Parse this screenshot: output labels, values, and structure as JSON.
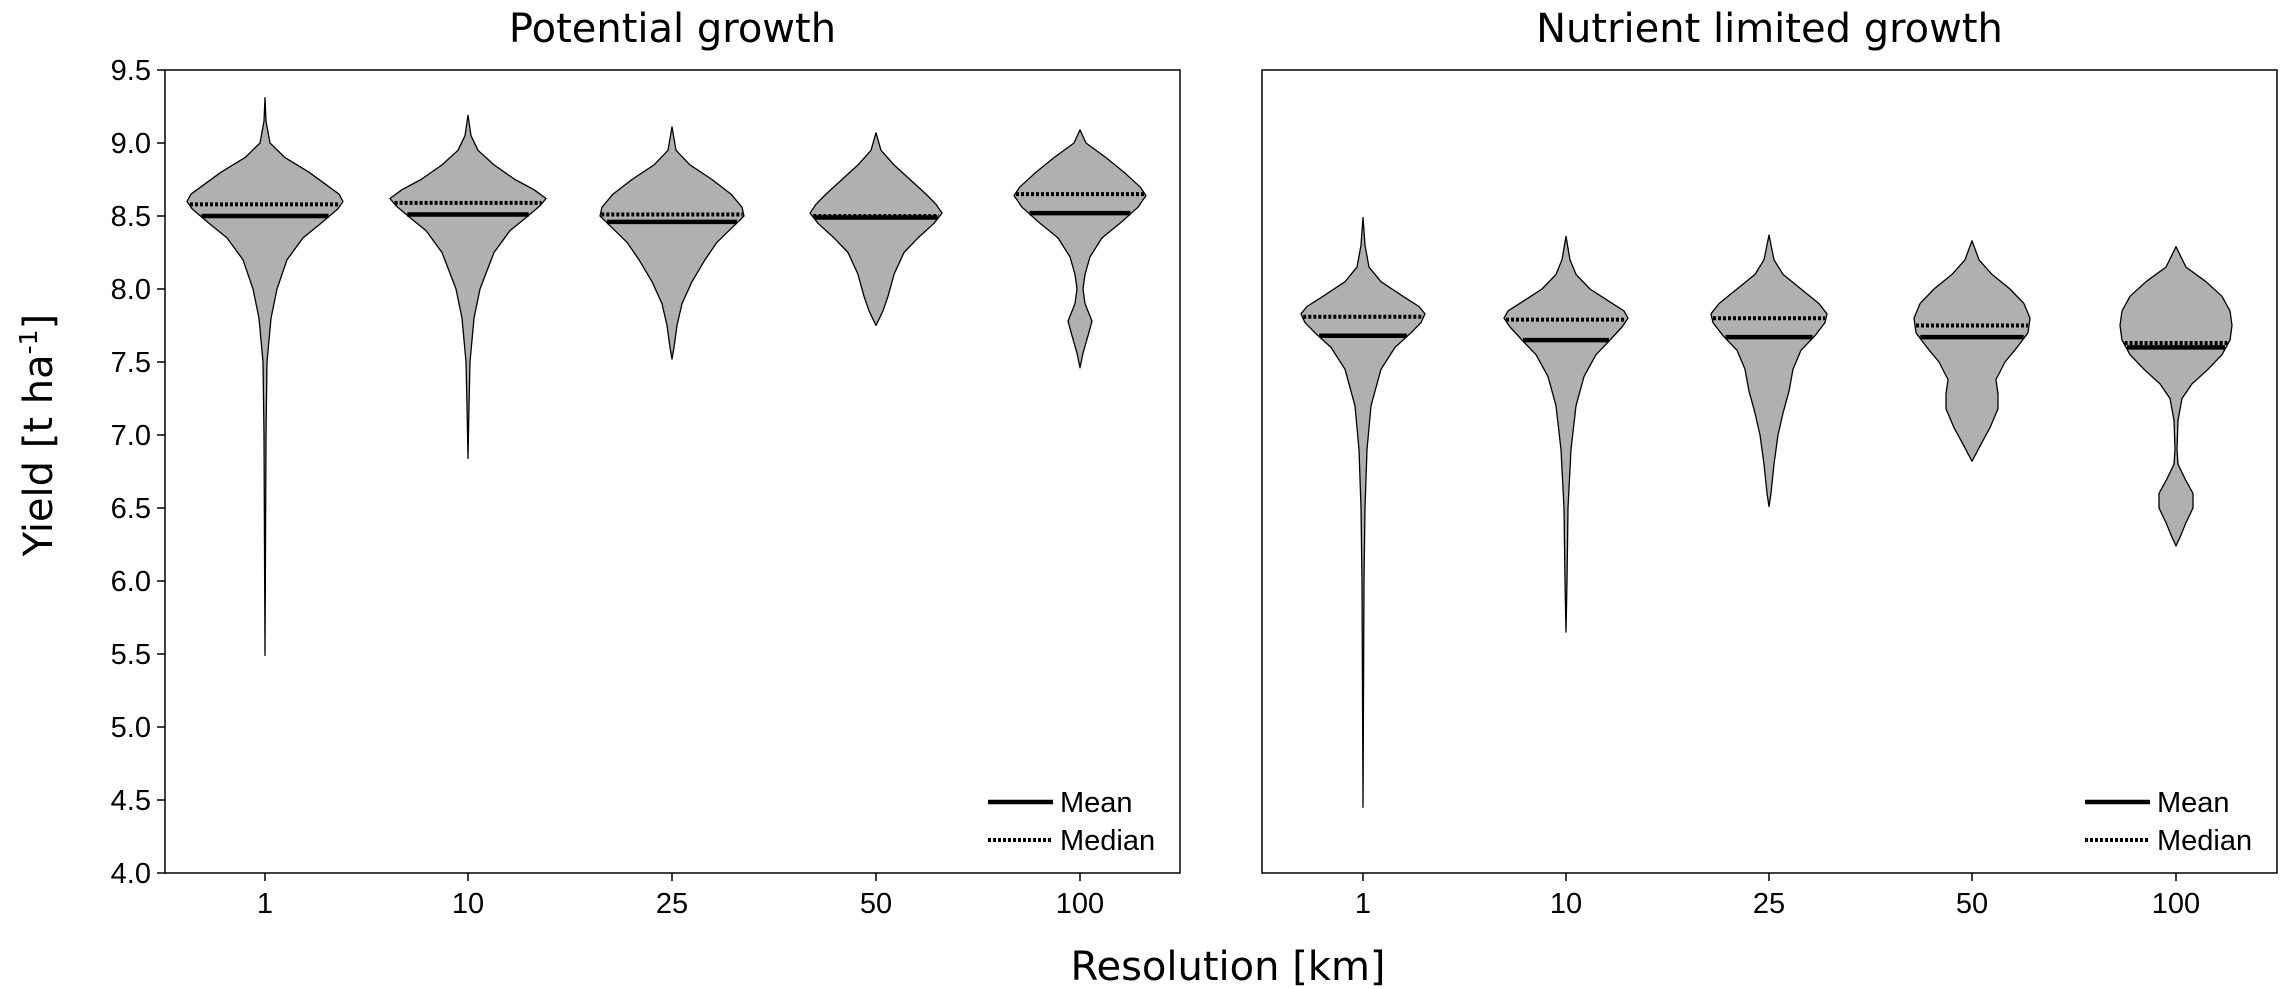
{
  "chart_data": {
    "type": "violin",
    "xlabel": "Resolution [km]",
    "ylabel": "Yield [t ha",
    "ylabel_sup": "-1",
    "ylabel_end": "]",
    "ylim": [
      4.0,
      9.5
    ],
    "yticks": [
      "4.0",
      "4.5",
      "5.0",
      "5.5",
      "6.0",
      "6.5",
      "7.0",
      "7.5",
      "8.0",
      "8.5",
      "9.0",
      "9.5"
    ],
    "categories": [
      "1",
      "10",
      "25",
      "50",
      "100"
    ],
    "legend": {
      "position": "bottom-right",
      "mean_label": "Mean",
      "median_label": "Median"
    },
    "colors": {
      "fill": "#b0b0b0",
      "stroke": "#000000"
    },
    "panels": [
      {
        "title": "Potential growth",
        "violins": [
          {
            "category": "1",
            "mean": 8.5,
            "median": 8.58,
            "max": 9.31,
            "min": 5.49,
            "profile": [
              [
                9.31,
                0
              ],
              [
                9.15,
                1
              ],
              [
                9.0,
                5
              ],
              [
                8.9,
                20
              ],
              [
                8.8,
                44
              ],
              [
                8.7,
                64
              ],
              [
                8.65,
                74
              ],
              [
                8.6,
                78
              ],
              [
                8.55,
                73
              ],
              [
                8.45,
                56
              ],
              [
                8.35,
                38
              ],
              [
                8.2,
                22
              ],
              [
                8.0,
                12
              ],
              [
                7.8,
                6
              ],
              [
                7.5,
                2
              ],
              [
                7.0,
                1
              ],
              [
                5.49,
                0
              ]
            ]
          },
          {
            "category": "10",
            "mean": 8.51,
            "median": 8.59,
            "max": 9.19,
            "min": 6.84,
            "profile": [
              [
                9.19,
                0
              ],
              [
                9.05,
                3
              ],
              [
                8.95,
                10
              ],
              [
                8.85,
                26
              ],
              [
                8.75,
                47
              ],
              [
                8.68,
                66
              ],
              [
                8.62,
                78
              ],
              [
                8.57,
                72
              ],
              [
                8.5,
                60
              ],
              [
                8.4,
                42
              ],
              [
                8.25,
                26
              ],
              [
                8.0,
                12
              ],
              [
                7.8,
                6
              ],
              [
                7.5,
                2
              ],
              [
                7.2,
                1
              ],
              [
                6.84,
                0
              ]
            ]
          },
          {
            "category": "25",
            "mean": 8.46,
            "median": 8.51,
            "max": 9.11,
            "min": 7.52,
            "profile": [
              [
                9.11,
                0
              ],
              [
                8.95,
                4
              ],
              [
                8.85,
                18
              ],
              [
                8.75,
                40
              ],
              [
                8.65,
                59
              ],
              [
                8.56,
                70
              ],
              [
                8.5,
                72
              ],
              [
                8.42,
                60
              ],
              [
                8.32,
                45
              ],
              [
                8.2,
                33
              ],
              [
                8.05,
                20
              ],
              [
                7.9,
                10
              ],
              [
                7.75,
                5
              ],
              [
                7.6,
                2
              ],
              [
                7.52,
                0
              ]
            ]
          },
          {
            "category": "50",
            "mean": 8.49,
            "median": 8.5,
            "max": 9.07,
            "min": 7.75,
            "profile": [
              [
                9.07,
                0
              ],
              [
                8.95,
                5
              ],
              [
                8.85,
                18
              ],
              [
                8.75,
                34
              ],
              [
                8.65,
                50
              ],
              [
                8.58,
                60
              ],
              [
                8.52,
                66
              ],
              [
                8.45,
                58
              ],
              [
                8.35,
                42
              ],
              [
                8.25,
                28
              ],
              [
                8.1,
                18
              ],
              [
                7.95,
                12
              ],
              [
                7.85,
                7
              ],
              [
                7.75,
                0
              ]
            ]
          },
          {
            "category": "100",
            "mean": 8.52,
            "median": 8.65,
            "max": 9.09,
            "min": 7.46,
            "profile": [
              [
                9.09,
                0
              ],
              [
                9.0,
                6
              ],
              [
                8.9,
                26
              ],
              [
                8.8,
                44
              ],
              [
                8.7,
                60
              ],
              [
                8.64,
                66
              ],
              [
                8.56,
                58
              ],
              [
                8.45,
                40
              ],
              [
                8.35,
                22
              ],
              [
                8.22,
                10
              ],
              [
                8.1,
                5
              ],
              [
                8.0,
                3
              ],
              [
                7.9,
                5
              ],
              [
                7.78,
                12
              ],
              [
                7.68,
                8
              ],
              [
                7.56,
                3
              ],
              [
                7.46,
                0
              ]
            ]
          }
        ]
      },
      {
        "title": "Nutrient limited growth",
        "violins": [
          {
            "category": "1",
            "mean": 7.68,
            "median": 7.81,
            "max": 8.49,
            "min": 4.45,
            "profile": [
              [
                8.49,
                0
              ],
              [
                8.3,
                2
              ],
              [
                8.15,
                6
              ],
              [
                8.05,
                18
              ],
              [
                7.95,
                40
              ],
              [
                7.88,
                56
              ],
              [
                7.83,
                62
              ],
              [
                7.77,
                58
              ],
              [
                7.7,
                48
              ],
              [
                7.6,
                32
              ],
              [
                7.45,
                18
              ],
              [
                7.2,
                8
              ],
              [
                6.9,
                4
              ],
              [
                6.5,
                2
              ],
              [
                6.0,
                1
              ],
              [
                4.45,
                0
              ]
            ]
          },
          {
            "category": "10",
            "mean": 7.65,
            "median": 7.79,
            "max": 8.36,
            "min": 5.65,
            "profile": [
              [
                8.36,
                0
              ],
              [
                8.2,
                4
              ],
              [
                8.1,
                10
              ],
              [
                8.0,
                24
              ],
              [
                7.92,
                42
              ],
              [
                7.85,
                58
              ],
              [
                7.8,
                62
              ],
              [
                7.74,
                56
              ],
              [
                7.65,
                44
              ],
              [
                7.55,
                30
              ],
              [
                7.4,
                18
              ],
              [
                7.2,
                10
              ],
              [
                6.9,
                5
              ],
              [
                6.5,
                2
              ],
              [
                6.0,
                1
              ],
              [
                5.65,
                0
              ]
            ]
          },
          {
            "category": "25",
            "mean": 7.67,
            "median": 7.8,
            "max": 8.37,
            "min": 6.51,
            "profile": [
              [
                8.37,
                0
              ],
              [
                8.2,
                5
              ],
              [
                8.1,
                14
              ],
              [
                8.0,
                32
              ],
              [
                7.9,
                50
              ],
              [
                7.83,
                58
              ],
              [
                7.77,
                56
              ],
              [
                7.68,
                46
              ],
              [
                7.58,
                32
              ],
              [
                7.45,
                24
              ],
              [
                7.3,
                20
              ],
              [
                7.15,
                14
              ],
              [
                7.0,
                9
              ],
              [
                6.8,
                5
              ],
              [
                6.6,
                2
              ],
              [
                6.51,
                0
              ]
            ]
          },
          {
            "category": "50",
            "mean": 7.67,
            "median": 7.75,
            "max": 8.33,
            "min": 6.82,
            "profile": [
              [
                8.33,
                0
              ],
              [
                8.2,
                7
              ],
              [
                8.1,
                20
              ],
              [
                8.0,
                38
              ],
              [
                7.9,
                52
              ],
              [
                7.8,
                58
              ],
              [
                7.7,
                56
              ],
              [
                7.6,
                45
              ],
              [
                7.5,
                33
              ],
              [
                7.38,
                24
              ],
              [
                7.28,
                26
              ],
              [
                7.18,
                26
              ],
              [
                7.05,
                18
              ],
              [
                6.95,
                10
              ],
              [
                6.82,
                0
              ]
            ]
          },
          {
            "category": "100",
            "mean": 7.6,
            "median": 7.63,
            "max": 8.29,
            "min": 6.24,
            "profile": [
              [
                8.29,
                0
              ],
              [
                8.15,
                10
              ],
              [
                8.05,
                30
              ],
              [
                7.95,
                46
              ],
              [
                7.85,
                54
              ],
              [
                7.75,
                56
              ],
              [
                7.65,
                54
              ],
              [
                7.55,
                46
              ],
              [
                7.45,
                32
              ],
              [
                7.35,
                16
              ],
              [
                7.25,
                6
              ],
              [
                7.1,
                2
              ],
              [
                6.9,
                1
              ],
              [
                6.8,
                2
              ],
              [
                6.7,
                9
              ],
              [
                6.6,
                17
              ],
              [
                6.5,
                17
              ],
              [
                6.4,
                10
              ],
              [
                6.3,
                4
              ],
              [
                6.24,
                0
              ]
            ]
          }
        ]
      }
    ]
  }
}
